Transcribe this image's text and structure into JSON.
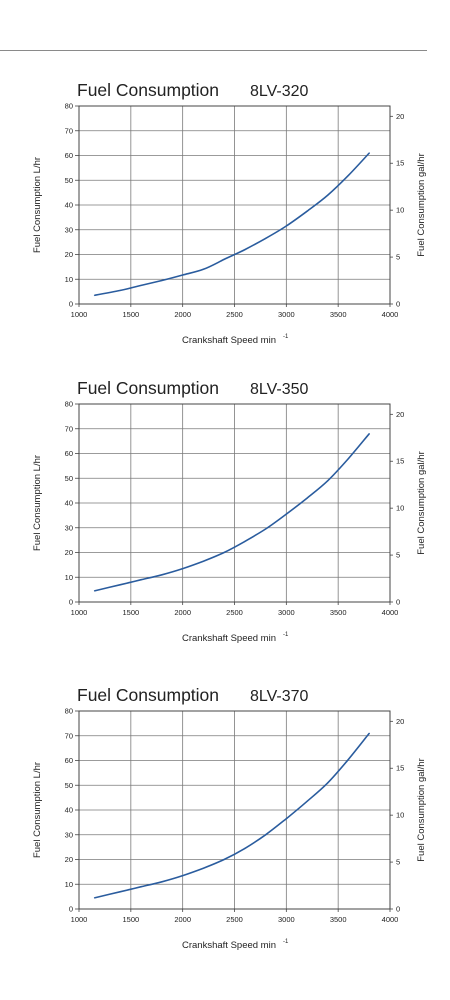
{
  "page": {
    "divider": true
  },
  "chart_data": [
    {
      "type": "line",
      "title": "Fuel Consumption",
      "model": "8LV-320",
      "xlabel": "Crankshaft Speed min",
      "xlabel_superscript": "-1",
      "ylabel": "Fuel Consumption L/hr",
      "y2label": "Fuel Consumption gal/hr",
      "xlim": [
        1000,
        4000
      ],
      "ylim": [
        0,
        80
      ],
      "y2lim": [
        0,
        21.1
      ],
      "x_ticks": [
        1000,
        1500,
        2000,
        2500,
        3000,
        3500,
        4000
      ],
      "y_ticks": [
        0,
        10,
        20,
        30,
        40,
        50,
        60,
        70,
        80
      ],
      "y2_ticks": [
        0,
        5,
        10,
        15,
        20
      ],
      "grid": true,
      "line_color": "#2a5c9e",
      "series": [
        {
          "x": [
            1150,
            1400,
            1600,
            1800,
            2000,
            2200,
            2400,
            2600,
            2800,
            3000,
            3200,
            3400,
            3600,
            3800
          ],
          "y": [
            3.5,
            5.5,
            7.5,
            9.5,
            11.7,
            14.0,
            18.0,
            22.0,
            26.5,
            31.5,
            37.5,
            44.0,
            52.0,
            61.0
          ]
        }
      ]
    },
    {
      "type": "line",
      "title": "Fuel Consumption",
      "model": "8LV-350",
      "xlabel": "Crankshaft Speed min",
      "xlabel_superscript": "-1",
      "ylabel": "Fuel Consumption L/hr",
      "y2label": "Fuel Consumption gal/hr",
      "xlim": [
        1000,
        4000
      ],
      "ylim": [
        0,
        80
      ],
      "y2lim": [
        0,
        21.1
      ],
      "x_ticks": [
        1000,
        1500,
        2000,
        2500,
        3000,
        3500,
        4000
      ],
      "y_ticks": [
        0,
        10,
        20,
        30,
        40,
        50,
        60,
        70,
        80
      ],
      "y2_ticks": [
        0,
        5,
        10,
        15,
        20
      ],
      "grid": true,
      "line_color": "#2a5c9e",
      "series": [
        {
          "x": [
            1150,
            1400,
            1600,
            1800,
            2000,
            2200,
            2400,
            2600,
            2800,
            3000,
            3200,
            3400,
            3600,
            3800
          ],
          "y": [
            4.5,
            7.0,
            9.0,
            11.0,
            13.5,
            16.5,
            20.0,
            24.5,
            29.5,
            35.5,
            42.0,
            49.0,
            58.0,
            68.0
          ]
        }
      ]
    },
    {
      "type": "line",
      "title": "Fuel Consumption",
      "model": "8LV-370",
      "xlabel": "Crankshaft Speed min",
      "xlabel_superscript": "-1",
      "ylabel": "Fuel Consumption L/hr",
      "y2label": "Fuel Consumption gal/hr",
      "xlim": [
        1000,
        4000
      ],
      "ylim": [
        0,
        80
      ],
      "y2lim": [
        0,
        21.1
      ],
      "x_ticks": [
        1000,
        1500,
        2000,
        2500,
        3000,
        3500,
        4000
      ],
      "y_ticks": [
        0,
        10,
        20,
        30,
        40,
        50,
        60,
        70,
        80
      ],
      "y2_ticks": [
        0,
        5,
        10,
        15,
        20
      ],
      "grid": true,
      "line_color": "#2a5c9e",
      "series": [
        {
          "x": [
            1150,
            1400,
            1600,
            1800,
            2000,
            2200,
            2400,
            2600,
            2800,
            3000,
            3200,
            3400,
            3600,
            3800
          ],
          "y": [
            4.5,
            7.0,
            9.0,
            11.0,
            13.5,
            16.5,
            20.0,
            24.5,
            30.0,
            36.5,
            43.5,
            51.0,
            60.5,
            71.0
          ]
        }
      ]
    }
  ]
}
